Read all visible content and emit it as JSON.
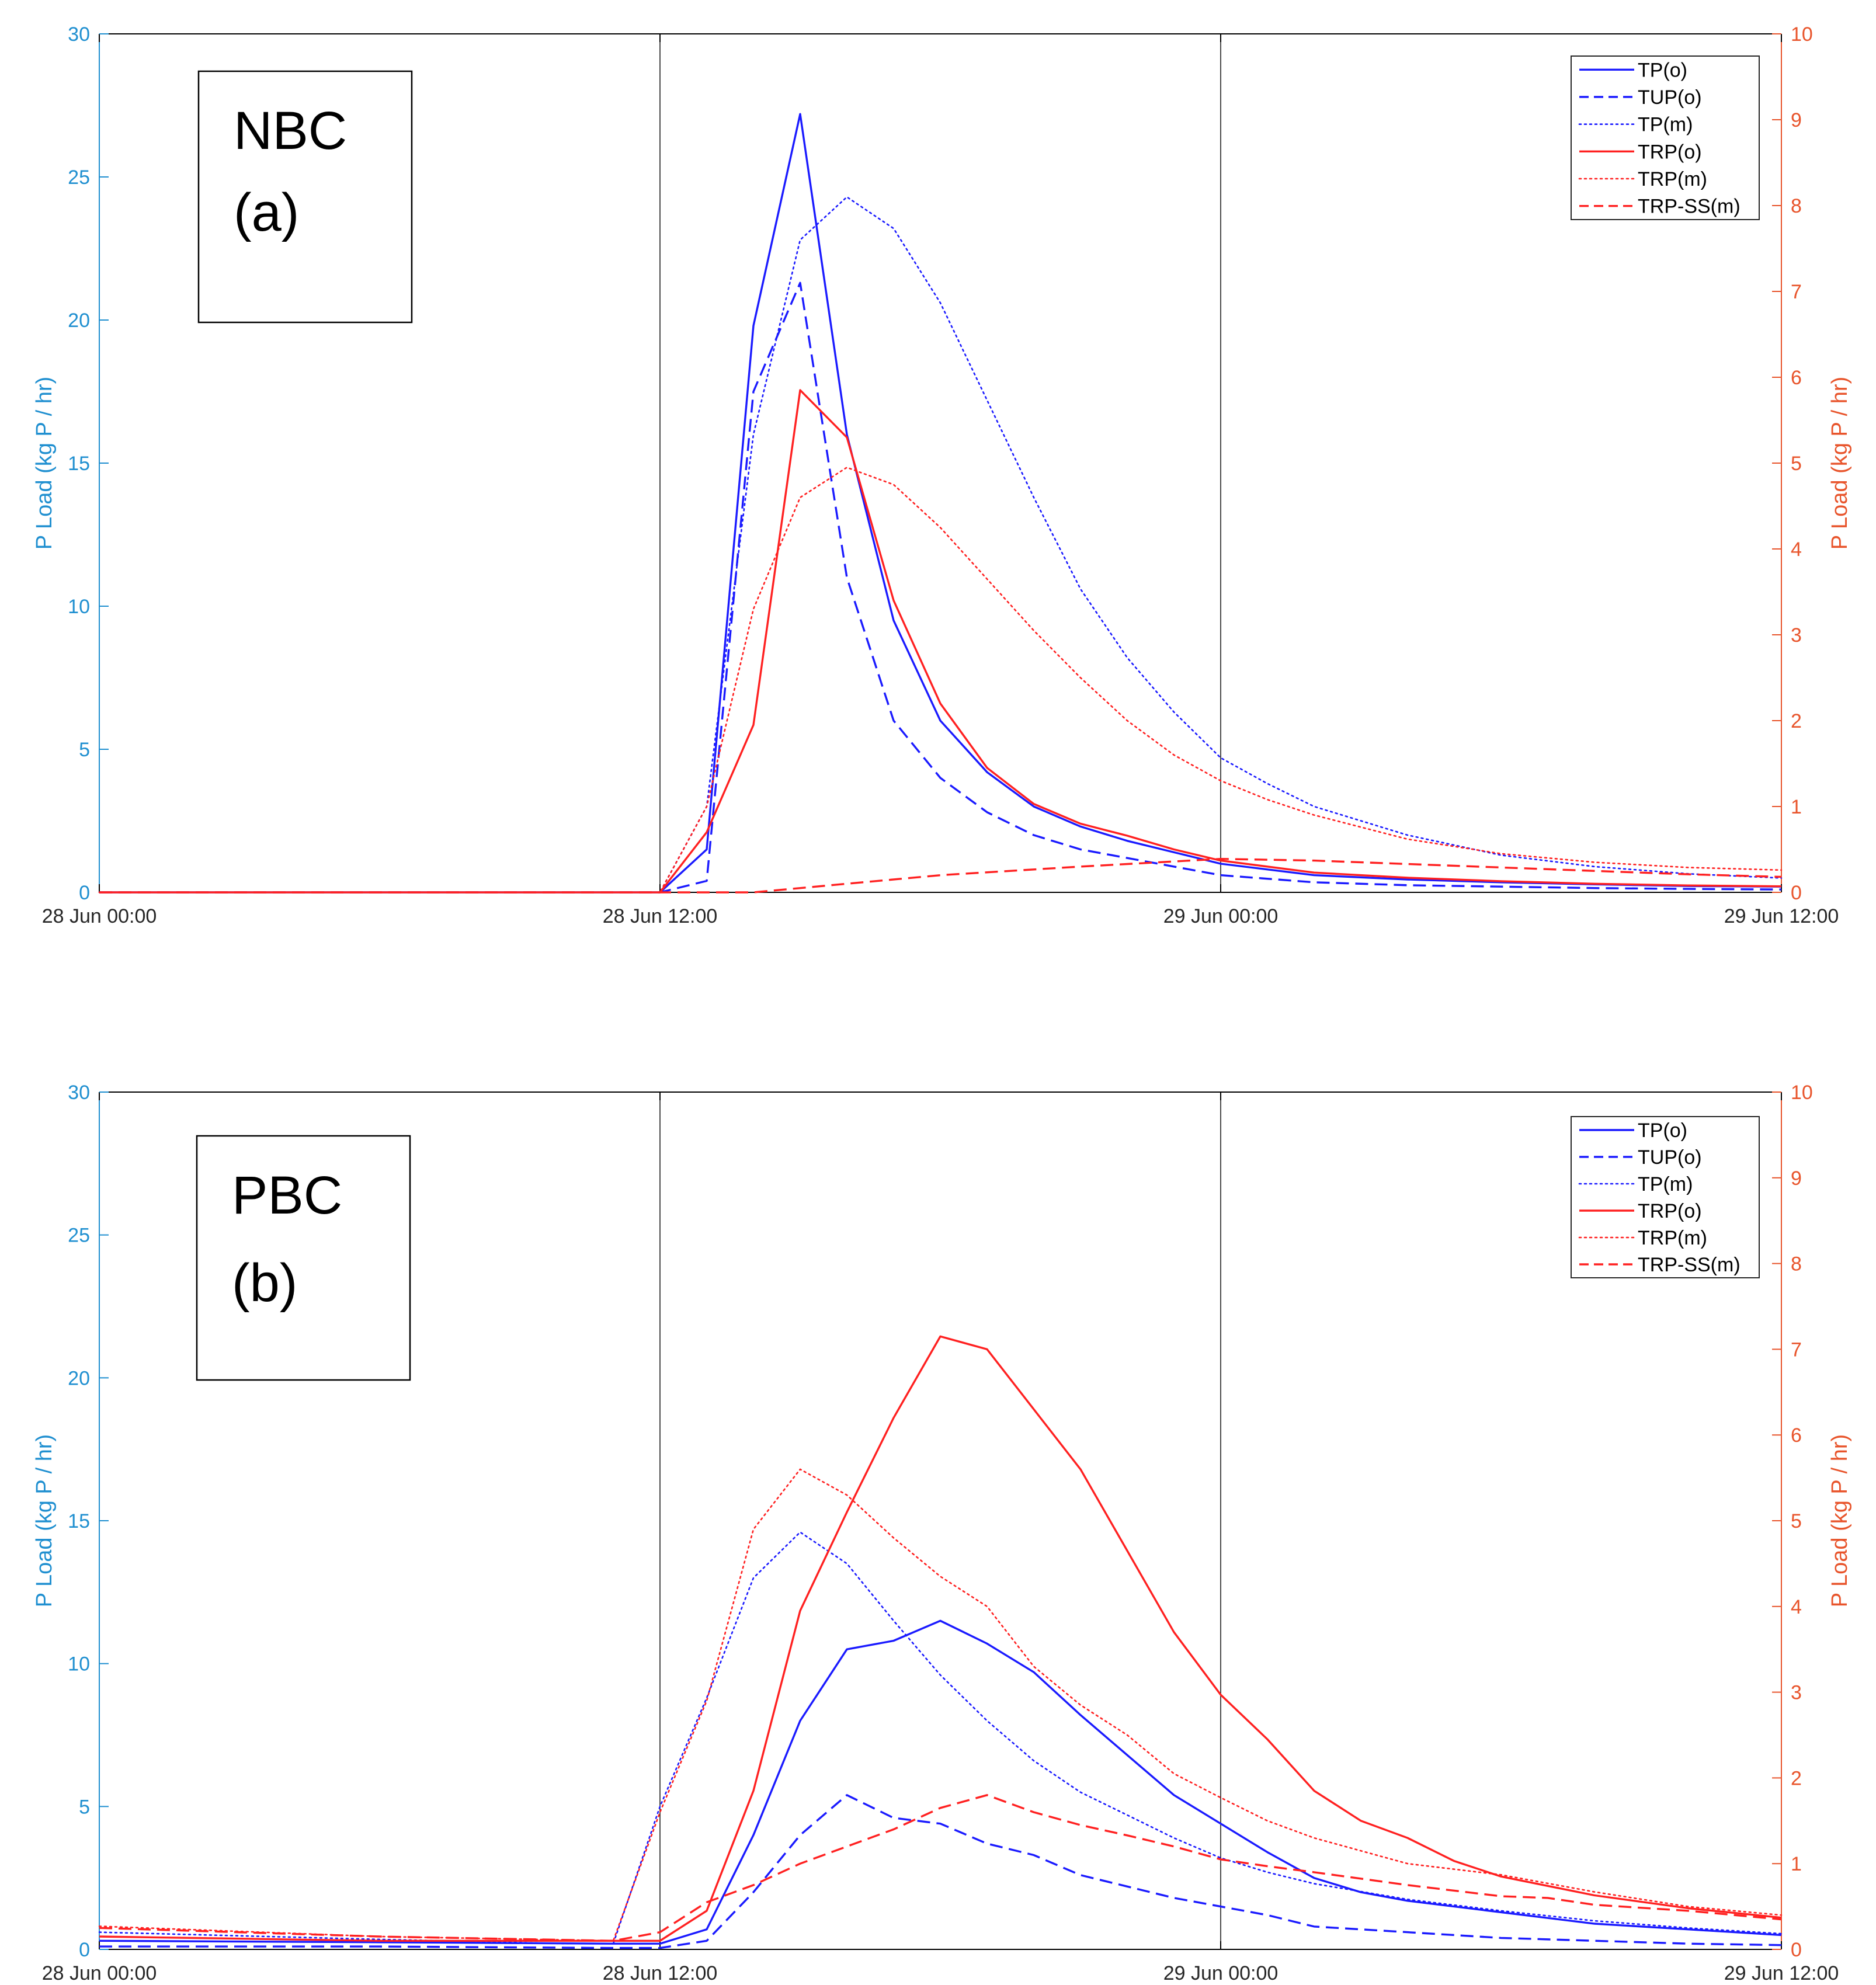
{
  "figure": {
    "colors": {
      "left_axis": "#1f8fd0",
      "right_axis": "#e8542b",
      "blue": "#1a1aff",
      "red": "#ff2020",
      "frame": "#000000",
      "grid": "#000000"
    }
  },
  "chart_data": [
    {
      "panel_id": "a",
      "type": "line",
      "site_label": "NBC",
      "panel_label": "(a)",
      "x_unit": "hours since 28 Jun 00:00",
      "xlim": [
        0,
        36
      ],
      "xticks": [
        0,
        12,
        24,
        36
      ],
      "xtick_labels": [
        "28 Jun 00:00",
        "28 Jun 12:00",
        "29 Jun 00:00",
        "29 Jun 12:00"
      ],
      "ylabel_left": "P Load (kg P / hr)",
      "ylim_left": [
        0,
        30
      ],
      "yticks_left": [
        0,
        5,
        10,
        15,
        20,
        25,
        30
      ],
      "ylabel_right": "P Load (kg P / hr)",
      "ylim_right": [
        0,
        10
      ],
      "yticks_right": [
        0,
        1,
        2,
        3,
        4,
        5,
        6,
        7,
        8,
        9,
        10
      ],
      "grid": "x only",
      "legend_position": "top-right",
      "series": [
        {
          "name": "TP(o)",
          "axis": "left",
          "color": "blue",
          "style": "solid",
          "x": [
            0,
            12,
            13,
            14,
            15,
            16,
            17,
            18,
            19,
            20,
            21,
            22,
            23,
            24,
            26,
            28,
            30,
            32,
            34,
            36
          ],
          "y": [
            0,
            0,
            1.5,
            19.8,
            27.2,
            16.0,
            9.5,
            6.0,
            4.2,
            3.0,
            2.3,
            1.8,
            1.4,
            1.0,
            0.6,
            0.45,
            0.35,
            0.28,
            0.22,
            0.2
          ]
        },
        {
          "name": "TUP(o)",
          "axis": "left",
          "color": "blue",
          "style": "dashed",
          "x": [
            0,
            12,
            13,
            14,
            15,
            16,
            17,
            18,
            19,
            20,
            21,
            22,
            23,
            24,
            26,
            28,
            30,
            32,
            34,
            36
          ],
          "y": [
            0,
            0,
            0.4,
            17.5,
            21.3,
            11.0,
            6.0,
            4.0,
            2.8,
            2.0,
            1.5,
            1.2,
            0.9,
            0.6,
            0.35,
            0.25,
            0.2,
            0.15,
            0.12,
            0.1
          ]
        },
        {
          "name": "TP(m)",
          "axis": "left",
          "color": "blue",
          "style": "dotted",
          "x": [
            0,
            12,
            13,
            14,
            15,
            16,
            17,
            18,
            19,
            20,
            21,
            22,
            23,
            24,
            25,
            26,
            28,
            30,
            32,
            34,
            36
          ],
          "y": [
            0,
            0,
            3.0,
            16.0,
            22.8,
            24.3,
            23.2,
            20.6,
            17.2,
            13.8,
            10.6,
            8.2,
            6.3,
            4.7,
            3.8,
            3.0,
            2.0,
            1.3,
            0.9,
            0.65,
            0.5
          ]
        },
        {
          "name": "TRP(o)",
          "axis": "right",
          "color": "red",
          "style": "solid",
          "x": [
            0,
            12,
            13,
            14,
            15,
            16,
            17,
            18,
            19,
            20,
            21,
            22,
            23,
            24,
            26,
            28,
            30,
            32,
            34,
            36
          ],
          "y": [
            0,
            0,
            0.7,
            1.95,
            5.85,
            5.3,
            3.4,
            2.2,
            1.45,
            1.03,
            0.8,
            0.66,
            0.5,
            0.37,
            0.23,
            0.17,
            0.13,
            0.1,
            0.08,
            0.07
          ]
        },
        {
          "name": "TRP(m)",
          "axis": "right",
          "color": "red",
          "style": "dotted",
          "x": [
            0,
            12,
            13,
            14,
            15,
            16,
            17,
            18,
            19,
            20,
            21,
            22,
            23,
            24,
            25,
            26,
            28,
            30,
            32,
            34,
            36
          ],
          "y": [
            0,
            0,
            1.0,
            3.3,
            4.6,
            4.95,
            4.75,
            4.25,
            3.65,
            3.05,
            2.5,
            2.0,
            1.6,
            1.3,
            1.08,
            0.9,
            0.62,
            0.45,
            0.35,
            0.29,
            0.26
          ]
        },
        {
          "name": "TRP-SS(m)",
          "axis": "right",
          "color": "red",
          "style": "dashed",
          "x": [
            0,
            14,
            18,
            21,
            24,
            26,
            28,
            30,
            32,
            34,
            36
          ],
          "y": [
            0,
            0,
            0.2,
            0.3,
            0.39,
            0.37,
            0.33,
            0.29,
            0.25,
            0.21,
            0.18
          ]
        }
      ]
    },
    {
      "panel_id": "b",
      "type": "line",
      "site_label": "PBC",
      "panel_label": "(b)",
      "x_unit": "hours since 28 Jun 00:00",
      "xlim": [
        0,
        36
      ],
      "xticks": [
        0,
        12,
        24,
        36
      ],
      "xtick_labels": [
        "28 Jun 00:00",
        "28 Jun 12:00",
        "29 Jun 00:00",
        "29 Jun 12:00"
      ],
      "ylabel_left": "P Load (kg P / hr)",
      "ylim_left": [
        0,
        30
      ],
      "yticks_left": [
        0,
        5,
        10,
        15,
        20,
        25,
        30
      ],
      "ylabel_right": "P Load (kg P / hr)",
      "ylim_right": [
        0,
        10
      ],
      "yticks_right": [
        0,
        1,
        2,
        3,
        4,
        5,
        6,
        7,
        8,
        9,
        10
      ],
      "grid": "x only",
      "legend_position": "top-right",
      "series": [
        {
          "name": "TP(o)",
          "axis": "left",
          "color": "blue",
          "style": "solid",
          "x": [
            0,
            6,
            11,
            12,
            13,
            14,
            15,
            16,
            17,
            18,
            19,
            20,
            21,
            22,
            23,
            24,
            25,
            26,
            27,
            28,
            30,
            32,
            34,
            36
          ],
          "y": [
            0.3,
            0.25,
            0.2,
            0.2,
            0.7,
            4.0,
            8.0,
            10.5,
            10.8,
            11.5,
            10.7,
            9.7,
            8.2,
            6.8,
            5.4,
            4.4,
            3.4,
            2.5,
            2.0,
            1.7,
            1.3,
            0.9,
            0.7,
            0.5
          ]
        },
        {
          "name": "TUP(o)",
          "axis": "left",
          "color": "blue",
          "style": "dashed",
          "x": [
            0,
            6,
            11,
            12,
            13,
            14,
            15,
            16,
            17,
            18,
            19,
            20,
            21,
            22,
            23,
            24,
            25,
            26,
            28,
            30,
            32,
            34,
            36
          ],
          "y": [
            0.1,
            0.1,
            0.05,
            0.05,
            0.3,
            2.0,
            4.0,
            5.4,
            4.6,
            4.4,
            3.7,
            3.3,
            2.6,
            2.2,
            1.8,
            1.5,
            1.2,
            0.8,
            0.6,
            0.4,
            0.3,
            0.2,
            0.15
          ]
        },
        {
          "name": "TP(m)",
          "axis": "left",
          "color": "blue",
          "style": "dotted",
          "x": [
            0,
            6,
            10,
            11,
            12,
            13,
            14,
            15,
            16,
            17,
            18,
            19,
            20,
            21,
            22,
            23,
            24,
            25,
            26,
            28,
            30,
            32,
            34,
            36
          ],
          "y": [
            0.6,
            0.35,
            0.2,
            0.2,
            5.0,
            8.8,
            13.0,
            14.6,
            13.5,
            11.5,
            9.6,
            8.0,
            6.6,
            5.5,
            4.7,
            3.9,
            3.2,
            2.7,
            2.3,
            1.75,
            1.35,
            1.0,
            0.75,
            0.55
          ]
        },
        {
          "name": "TRP(o)",
          "axis": "right",
          "color": "red",
          "style": "solid",
          "x": [
            0,
            6,
            11,
            12,
            13,
            14,
            15,
            16,
            17,
            18,
            19,
            20,
            21,
            22,
            23,
            24,
            25,
            26,
            27,
            28,
            29,
            30,
            32,
            34,
            36
          ],
          "y": [
            0.15,
            0.1,
            0.1,
            0.1,
            0.45,
            1.85,
            3.95,
            5.1,
            6.2,
            7.15,
            7.0,
            6.3,
            5.6,
            4.65,
            3.7,
            2.97,
            2.45,
            1.85,
            1.5,
            1.3,
            1.03,
            0.85,
            0.63,
            0.48,
            0.37
          ]
        },
        {
          "name": "TRP(m)",
          "axis": "right",
          "color": "red",
          "style": "dotted",
          "x": [
            0,
            6,
            11,
            12,
            13,
            14,
            15,
            16,
            17,
            18,
            19,
            20,
            21,
            22,
            23,
            24,
            25,
            26,
            28,
            30,
            32,
            34,
            36
          ],
          "y": [
            0.27,
            0.15,
            0.1,
            1.6,
            2.9,
            4.9,
            5.6,
            5.3,
            4.8,
            4.35,
            4.0,
            3.3,
            2.85,
            2.5,
            2.05,
            1.77,
            1.5,
            1.3,
            1.0,
            0.87,
            0.67,
            0.5,
            0.4
          ]
        },
        {
          "name": "TRP-SS(m)",
          "axis": "right",
          "color": "red",
          "style": "dashed",
          "x": [
            0,
            6,
            11,
            12,
            13,
            14,
            15,
            16,
            17,
            18,
            19,
            20,
            21,
            22,
            23,
            24,
            25,
            26,
            28,
            30,
            31,
            32,
            34,
            36
          ],
          "y": [
            0.25,
            0.15,
            0.1,
            0.2,
            0.55,
            0.75,
            1.0,
            1.2,
            1.4,
            1.65,
            1.8,
            1.6,
            1.45,
            1.33,
            1.2,
            1.05,
            0.97,
            0.9,
            0.75,
            0.62,
            0.6,
            0.52,
            0.45,
            0.35
          ]
        }
      ]
    }
  ]
}
